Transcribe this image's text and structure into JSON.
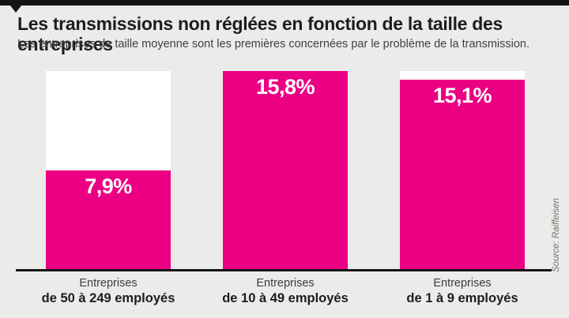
{
  "meta": {
    "background_color": "#ebebe9",
    "accent_color": "#ec0083",
    "bar_track_color": "#ffffff",
    "axis_color": "#141414",
    "title_color": "#1d1d1b",
    "subtitle_color": "#3f3f3d",
    "source_color": "#73736f"
  },
  "header": {
    "title": "Les transmissions non réglées en fonction de la taille des entreprises",
    "subtitle": "Les entreprises de taille moyenne sont les premières concernées par le problème de la transmission."
  },
  "source": "Source: Raiffeisen",
  "chart_data": {
    "type": "bar",
    "title": "Les transmissions non réglées en fonction de la taille des entreprises",
    "subtitle": "Les entreprises de taille moyenne sont les premières concernées par le problème de la transmission.",
    "categories": [
      {
        "line1": "Entreprises",
        "line2": "de 50 à 249 employés"
      },
      {
        "line1": "Entreprises",
        "line2": "de 10 à 49 employés"
      },
      {
        "line1": "Entreprises",
        "line2": "de 1 à 9 employés"
      }
    ],
    "values": [
      7.9,
      15.8,
      15.1
    ],
    "value_labels": [
      "7,9%",
      "15,8%",
      "15,1%"
    ],
    "unit": "%",
    "xlabel": "",
    "ylabel": "",
    "ylim": [
      0,
      15.8
    ],
    "grid": false,
    "legend": false,
    "bar_color": "#ec0083",
    "track_color": "#ffffff",
    "value_label_position": "inside-top",
    "source": "Source: Raiffeisen"
  }
}
